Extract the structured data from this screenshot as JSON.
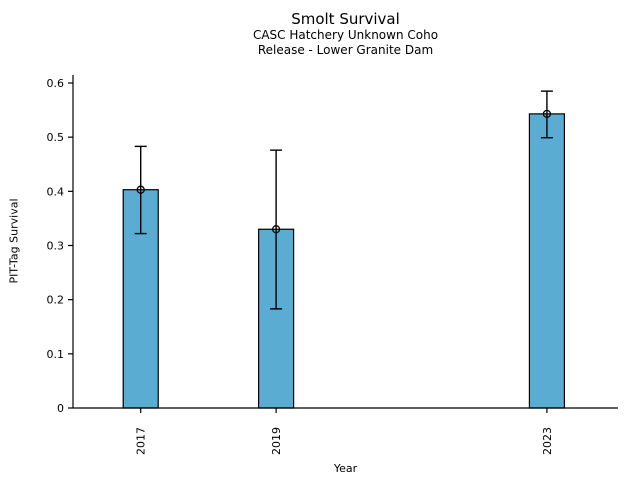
{
  "chart_data": {
    "type": "bar",
    "title": "Smolt Survival",
    "subtitle": [
      "CASC Hatchery Unknown Coho",
      "Release - Lower Granite Dam"
    ],
    "xlabel": "Year",
    "ylabel": "PIT-Tag Survival",
    "categories": [
      2017,
      2019,
      2023
    ],
    "xtick_labels": [
      "2017",
      "2019",
      "2023"
    ],
    "values": [
      0.403,
      0.33,
      0.543
    ],
    "error_low": [
      0.322,
      0.183,
      0.499
    ],
    "error_high": [
      0.483,
      0.476,
      0.585
    ],
    "marker": "open-circle",
    "ylim": [
      0,
      0.6
    ],
    "xlim": [
      2016,
      2024.05
    ],
    "yticks": [
      0,
      0.1,
      0.2,
      0.3,
      0.4,
      0.5,
      0.6
    ],
    "ytick_labels": [
      "0",
      "0.1",
      "0.2",
      "0.3",
      "0.4",
      "0.5",
      "0.6"
    ],
    "bar_color": "#5BACD3",
    "edge_color": "#000000",
    "error_color": "#000000",
    "text_color": "#000000",
    "background_color": "#ffffff",
    "grid": false,
    "legend": null
  }
}
